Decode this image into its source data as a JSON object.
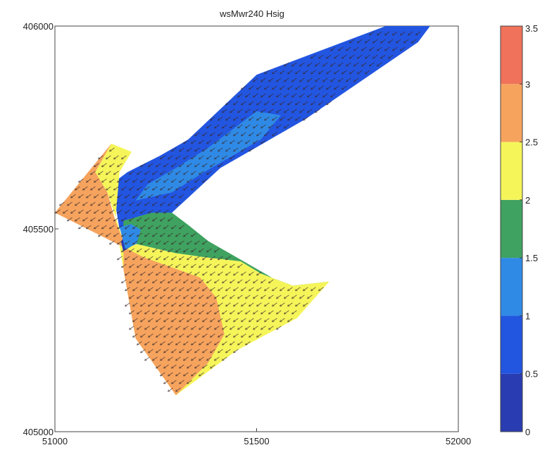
{
  "chart_data": {
    "type": "contour",
    "title": "wsMwr240 Hsig",
    "xlabel": "",
    "ylabel": "",
    "xlim": [
      51000,
      52000
    ],
    "ylim": [
      405000,
      406000
    ],
    "x_ticks": [
      51000,
      51500,
      52000
    ],
    "x_tick_labels": [
      "51000",
      "51500",
      "52000"
    ],
    "y_ticks": [
      405000,
      405500,
      406000
    ],
    "y_tick_labels": [
      "405000",
      "405500",
      "406000"
    ],
    "grid": false,
    "legend": "colorbar-right",
    "colorbar": {
      "levels": [
        0,
        0.5,
        1,
        1.5,
        2,
        2.5,
        3,
        3.5
      ],
      "tick_labels": [
        "0",
        "0.5",
        "1",
        "1.5",
        "2",
        "2.5",
        "3",
        "3.5"
      ],
      "colors": [
        "#2a3cb2",
        "#2255e0",
        "#2f8ae6",
        "#3fa260",
        "#f5f55a",
        "#f6a35e",
        "#f0725a"
      ]
    },
    "regions": [
      {
        "name": "hsig-0.5-1",
        "color": "#2255e0",
        "points": [
          [
            51140,
            405610
          ],
          [
            51180,
            405640
          ],
          [
            51260,
            405680
          ],
          [
            51330,
            405720
          ],
          [
            51500,
            405880
          ],
          [
            51820,
            406000
          ],
          [
            51930,
            406000
          ],
          [
            51900,
            405960
          ],
          [
            51620,
            405770
          ],
          [
            51410,
            405650
          ],
          [
            51290,
            405540
          ],
          [
            51160,
            405500
          ],
          [
            51150,
            405560
          ]
        ]
      },
      {
        "name": "hsig-1-1.5",
        "color": "#2f8ae6",
        "points": [
          [
            51200,
            405570
          ],
          [
            51290,
            405590
          ],
          [
            51370,
            405640
          ],
          [
            51510,
            405720
          ],
          [
            51560,
            405780
          ],
          [
            51500,
            405790
          ],
          [
            51380,
            405700
          ],
          [
            51300,
            405650
          ],
          [
            51230,
            405610
          ]
        ]
      },
      {
        "name": "hsig-1.5-2",
        "color": "#3fa260",
        "points": [
          [
            51170,
            405520
          ],
          [
            51240,
            405540
          ],
          [
            51290,
            405540
          ],
          [
            51330,
            405510
          ],
          [
            51380,
            405470
          ],
          [
            51450,
            405430
          ],
          [
            51590,
            405350
          ],
          [
            51680,
            405370
          ],
          [
            51590,
            405360
          ],
          [
            51510,
            405390
          ],
          [
            51460,
            405420
          ],
          [
            51370,
            405430
          ],
          [
            51300,
            405440
          ],
          [
            51170,
            405470
          ]
        ]
      },
      {
        "name": "hsig-2-2.5",
        "color": "#f5f55a",
        "points": [
          [
            51170,
            405470
          ],
          [
            51300,
            405440
          ],
          [
            51370,
            405430
          ],
          [
            51460,
            405420
          ],
          [
            51510,
            405390
          ],
          [
            51590,
            405360
          ],
          [
            51680,
            405370
          ],
          [
            51600,
            405280
          ],
          [
            51450,
            405200
          ],
          [
            51300,
            405090
          ],
          [
            51200,
            405230
          ],
          [
            51170,
            405400
          ],
          [
            51150,
            405520
          ],
          [
            51160,
            405640
          ],
          [
            51190,
            405690
          ],
          [
            51140,
            405710
          ],
          [
            51100,
            405640
          ],
          [
            51130,
            405590
          ]
        ]
      },
      {
        "name": "hsig-2.5-3",
        "color": "#f6a35e",
        "points": [
          [
            51000,
            405540
          ],
          [
            51140,
            405710
          ],
          [
            51100,
            405640
          ],
          [
            51130,
            405590
          ],
          [
            51150,
            405520
          ],
          [
            51170,
            405470
          ],
          [
            51170,
            405400
          ],
          [
            51200,
            405230
          ],
          [
            51300,
            405090
          ],
          [
            51380,
            405170
          ],
          [
            51420,
            405240
          ],
          [
            51400,
            405330
          ],
          [
            51360,
            405380
          ],
          [
            51220,
            405430
          ]
        ]
      }
    ],
    "wind_direction": "south-west"
  }
}
